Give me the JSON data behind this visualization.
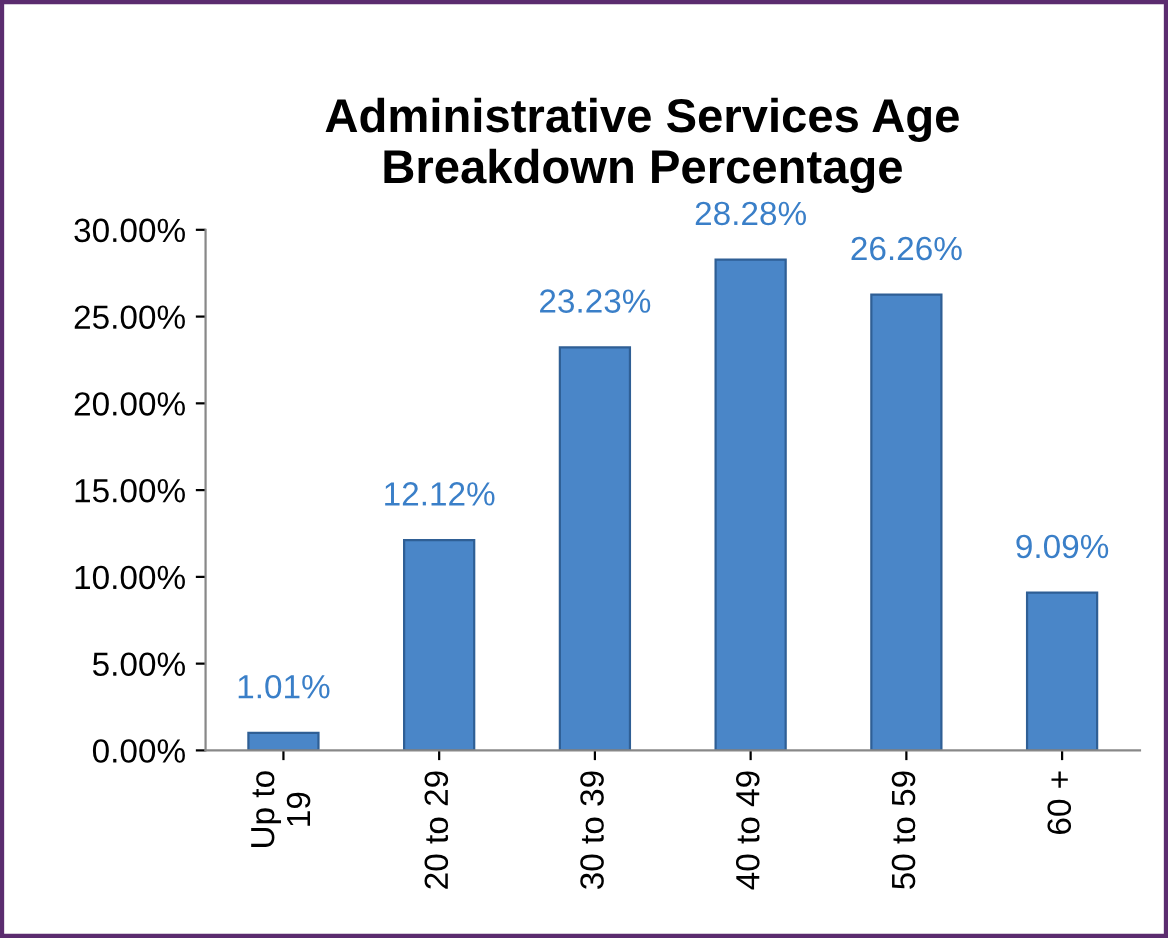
{
  "chart_data": {
    "type": "bar",
    "title": "Administrative Services Age\nBreakdown Percentage",
    "categories": [
      "Up to\n19",
      "20 to 29",
      "30 to 39",
      "40 to 49",
      "50 to 59",
      "60 +"
    ],
    "values": [
      1.01,
      12.12,
      23.23,
      28.28,
      26.26,
      9.09
    ],
    "value_labels": [
      "1.01%",
      "12.12%",
      "23.23%",
      "28.28%",
      "26.26%",
      "9.09%"
    ],
    "color": "#4a86c8",
    "ylim": [
      0,
      30
    ],
    "yticks": [
      {
        "value": 0,
        "label": "0.00%"
      },
      {
        "value": 5,
        "label": "5.00%"
      },
      {
        "value": 10,
        "label": "10.00%"
      },
      {
        "value": 15,
        "label": "15.00%"
      },
      {
        "value": 20,
        "label": "20.00%"
      },
      {
        "value": 25,
        "label": "25.00%"
      },
      {
        "value": 30,
        "label": "30.00%"
      }
    ],
    "grid": false,
    "legend": false
  }
}
